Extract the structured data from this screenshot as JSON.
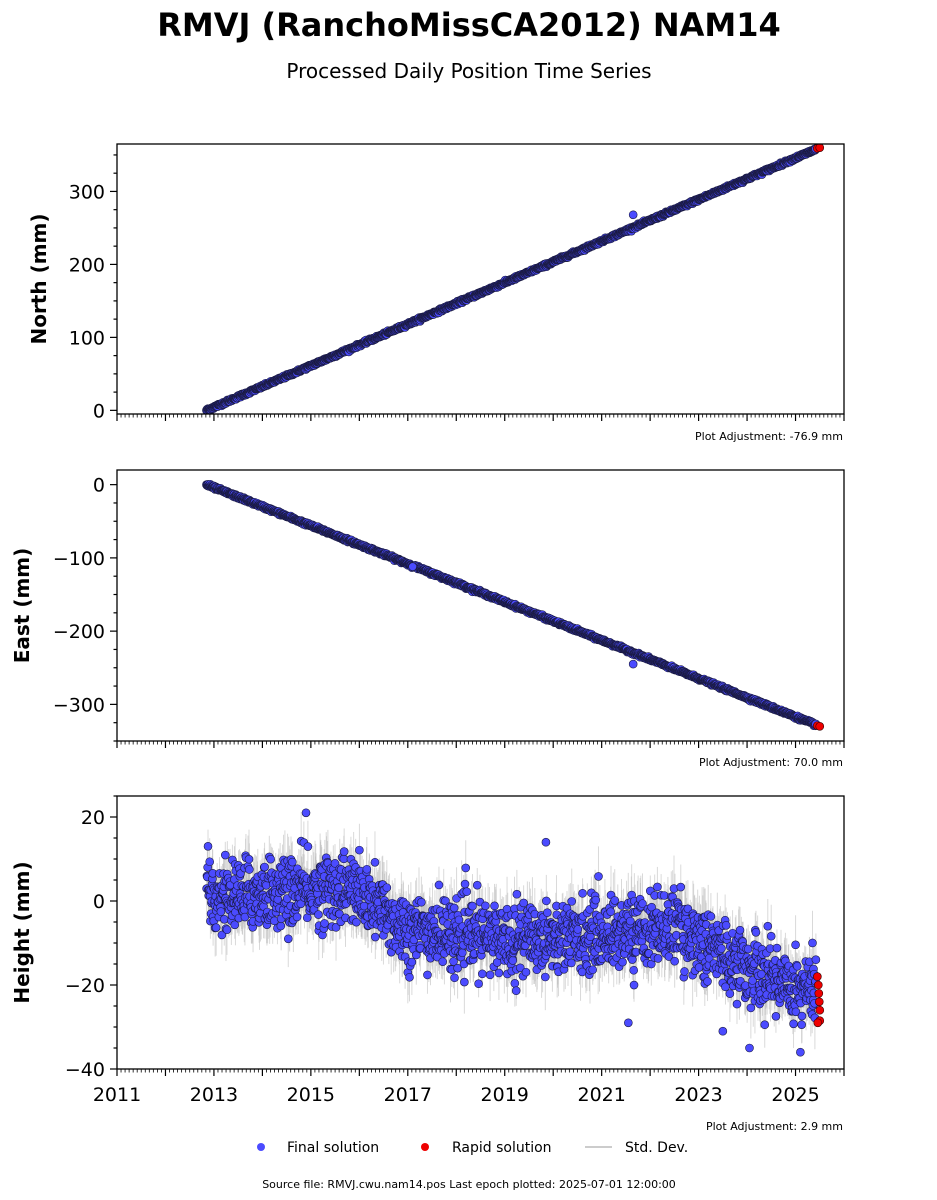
{
  "title": "RMVJ (RanchoMissCA2012) NAM14",
  "subtitle": "Processed Daily Position Time Series",
  "footer": "Source file: RMVJ.cwu.nam14.pos  Last epoch plotted: 2025-07-01 12:00:00",
  "legend": {
    "final": "Final solution",
    "rapid": "Rapid solution",
    "std": "Std. Dev."
  },
  "colors": {
    "final": "#4b4bff",
    "rapid": "#ee0000",
    "std": "#bbbbbb",
    "edge": "#1a1a40"
  },
  "chart_data": [
    {
      "type": "scatter",
      "ylabel": "North (mm)",
      "adjustment": "Plot Adjustment: -76.9 mm",
      "xlim": [
        2011,
        2026
      ],
      "ylim": [
        -5,
        365
      ],
      "yticks": [
        0,
        100,
        200,
        300
      ],
      "ytick_labels": [
        "0",
        "100",
        "200",
        "300"
      ],
      "trend_points": [
        [
          2012.85,
          0
        ],
        [
          2019.0,
          175
        ],
        [
          2025.5,
          360
        ]
      ],
      "outliers": [
        [
          2021.65,
          268
        ]
      ],
      "rapid_points": [
        [
          2025.45,
          359
        ],
        [
          2025.5,
          360
        ]
      ]
    },
    {
      "type": "scatter",
      "ylabel": "East (mm)",
      "adjustment": "Plot Adjustment: 70.0 mm",
      "xlim": [
        2011,
        2026
      ],
      "ylim": [
        -350,
        20
      ],
      "yticks": [
        0,
        -100,
        -200,
        -300
      ],
      "ytick_labels": [
        "0",
        "−100",
        "−200",
        "−300"
      ],
      "trend_points": [
        [
          2012.85,
          0
        ],
        [
          2019.0,
          -160
        ],
        [
          2025.5,
          -330
        ]
      ],
      "outliers": [
        [
          2021.65,
          -245
        ],
        [
          2017.1,
          -112
        ]
      ],
      "rapid_points": [
        [
          2025.45,
          -329
        ],
        [
          2025.5,
          -330
        ]
      ]
    },
    {
      "type": "scatter",
      "ylabel": "Height (mm)",
      "adjustment": "Plot Adjustment: 2.9 mm",
      "xlim": [
        2011,
        2026
      ],
      "ylim": [
        -40,
        25
      ],
      "yticks": [
        20,
        0,
        -20,
        -40
      ],
      "ytick_labels": [
        "20",
        "0",
        "−20",
        "−40"
      ],
      "xticks": [
        2011,
        2013,
        2015,
        2017,
        2019,
        2021,
        2023,
        2025
      ],
      "xtick_labels": [
        "2011",
        "2013",
        "2015",
        "2017",
        "2019",
        "2021",
        "2023",
        "2025"
      ],
      "trend_points": [
        [
          2012.85,
          1
        ],
        [
          2015.8,
          3
        ],
        [
          2017.0,
          -7
        ],
        [
          2019.0,
          -9
        ],
        [
          2021.0,
          -8
        ],
        [
          2022.5,
          -6
        ],
        [
          2024.0,
          -16
        ],
        [
          2025.5,
          -22
        ]
      ],
      "scatter_std": 4.2,
      "outliers": [
        [
          2014.9,
          21
        ],
        [
          2019.85,
          14
        ],
        [
          2024.05,
          -35
        ],
        [
          2025.1,
          -36
        ],
        [
          2021.55,
          -29
        ],
        [
          2023.5,
          -31
        ]
      ],
      "rapid_points": [
        [
          2025.45,
          -18
        ],
        [
          2025.47,
          -20
        ],
        [
          2025.48,
          -22
        ],
        [
          2025.49,
          -24
        ],
        [
          2025.5,
          -26
        ],
        [
          2025.5,
          -28.5
        ],
        [
          2025.46,
          -29
        ]
      ]
    }
  ]
}
